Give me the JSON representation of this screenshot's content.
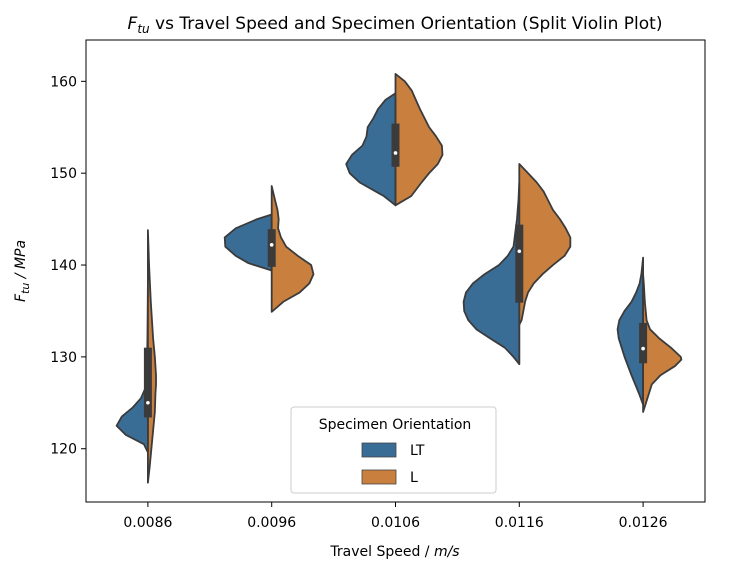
{
  "chart_data": {
    "type": "violin",
    "title": {
      "pre": "F",
      "sub": "tu",
      "post": " vs Travel Speed and Specimen Orientation (Split Violin Plot)"
    },
    "xlabel": {
      "pre": "Travel Speed / ",
      "italic": "m/s"
    },
    "ylabel": {
      "pre": "F",
      "sub": "tu",
      "post": " / MPa"
    },
    "categories": [
      "0.0086",
      "0.0096",
      "0.0106",
      "0.0116",
      "0.0126"
    ],
    "yticks": [
      120,
      130,
      140,
      150,
      160
    ],
    "ylim": [
      114.2,
      164.5
    ],
    "legend": {
      "title": "Specimen Orientation",
      "placement": "lower-center",
      "entries": [
        {
          "label": "LT",
          "color": "#3a6d96"
        },
        {
          "label": "L",
          "color": "#c9803e"
        }
      ]
    },
    "series": [
      {
        "name": "LT",
        "color": "#3a6d96",
        "side": "left",
        "shapes": [
          [
            [
              119.6,
              0.0
            ],
            [
              120.5,
              0.07
            ],
            [
              121.5,
              0.38
            ],
            [
              122.5,
              0.54
            ],
            [
              123.5,
              0.45
            ],
            [
              124.5,
              0.26
            ],
            [
              125.5,
              0.12
            ],
            [
              126.5,
              0.05
            ],
            [
              128,
              0.02
            ],
            [
              132,
              0.008
            ],
            [
              138,
              0.0
            ]
          ],
          [
            [
              139.4,
              0.0
            ],
            [
              140.2,
              0.4
            ],
            [
              141,
              0.62
            ],
            [
              142,
              0.8
            ],
            [
              143,
              0.81
            ],
            [
              144,
              0.62
            ],
            [
              145,
              0.25
            ],
            [
              145.5,
              0.0
            ]
          ],
          [
            [
              146.5,
              0.0
            ],
            [
              147.5,
              0.2
            ],
            [
              149,
              0.62
            ],
            [
              150,
              0.79
            ],
            [
              151,
              0.85
            ],
            [
              152,
              0.75
            ],
            [
              153,
              0.57
            ],
            [
              154,
              0.5
            ],
            [
              155,
              0.48
            ],
            [
              156,
              0.38
            ],
            [
              157,
              0.3
            ],
            [
              158,
              0.17
            ],
            [
              158.7,
              0.0
            ]
          ],
          [
            [
              129.2,
              0.0
            ],
            [
              130,
              0.1
            ],
            [
              131,
              0.25
            ],
            [
              132,
              0.5
            ],
            [
              133,
              0.74
            ],
            [
              134,
              0.88
            ],
            [
              135,
              0.95
            ],
            [
              136,
              0.96
            ],
            [
              137,
              0.92
            ],
            [
              138,
              0.8
            ],
            [
              139,
              0.6
            ],
            [
              140,
              0.35
            ],
            [
              141,
              0.2
            ],
            [
              142,
              0.1
            ],
            [
              145,
              0.04
            ],
            [
              147,
              0.015
            ],
            [
              149,
              0.0
            ]
          ],
          [
            [
              124.8,
              0.0
            ],
            [
              126,
              0.07
            ],
            [
              128,
              0.2
            ],
            [
              130,
              0.32
            ],
            [
              132,
              0.42
            ],
            [
              133,
              0.44
            ],
            [
              134,
              0.41
            ],
            [
              135,
              0.32
            ],
            [
              136,
              0.2
            ],
            [
              137,
              0.12
            ],
            [
              138,
              0.06
            ],
            [
              139,
              0.03
            ],
            [
              140.8,
              0.0
            ]
          ]
        ],
        "box": [
          {
            "q1": 123.4,
            "q3": 131.0,
            "median": 125.0,
            "wlo": 119.6,
            "whi": 131.0
          },
          {
            "q1": 139.8,
            "q3": 143.9,
            "median": 142.2,
            "wlo": 139.4,
            "whi": 145.5
          },
          {
            "q1": 150.7,
            "q3": 155.4,
            "median": 152.2,
            "wlo": 146.5,
            "whi": 158.0
          },
          {
            "q1": 135.9,
            "q3": 144.4,
            "median": 141.5,
            "wlo": 129.2,
            "whi": 149.0
          },
          {
            "q1": 129.3,
            "q3": 133.7,
            "median": 130.9,
            "wlo": 124.8,
            "whi": 137.0
          }
        ]
      },
      {
        "name": "L",
        "color": "#c9803e",
        "side": "right",
        "shapes": [
          [
            [
              116.3,
              0.0
            ],
            [
              118,
              0.03
            ],
            [
              120,
              0.06
            ],
            [
              122,
              0.09
            ],
            [
              124,
              0.12
            ],
            [
              126,
              0.13
            ],
            [
              127,
              0.14
            ],
            [
              128,
              0.14
            ],
            [
              130,
              0.12
            ],
            [
              132,
              0.09
            ],
            [
              134,
              0.07
            ],
            [
              136,
              0.05
            ],
            [
              138,
              0.035
            ],
            [
              140,
              0.02
            ],
            [
              142,
              0.01
            ],
            [
              143.8,
              0.0
            ]
          ],
          [
            [
              134.9,
              0.0
            ],
            [
              136,
              0.2
            ],
            [
              137,
              0.48
            ],
            [
              138,
              0.65
            ],
            [
              139,
              0.72
            ],
            [
              140,
              0.68
            ],
            [
              141,
              0.45
            ],
            [
              142,
              0.25
            ],
            [
              143,
              0.16
            ],
            [
              144,
              0.11
            ],
            [
              145,
              0.12
            ],
            [
              146,
              0.1
            ],
            [
              147,
              0.06
            ],
            [
              148.6,
              0.0
            ]
          ],
          [
            [
              146.5,
              0.0
            ],
            [
              147.5,
              0.27
            ],
            [
              149,
              0.45
            ],
            [
              150,
              0.58
            ],
            [
              151,
              0.73
            ],
            [
              152,
              0.81
            ],
            [
              153,
              0.8
            ],
            [
              154,
              0.7
            ],
            [
              155,
              0.58
            ],
            [
              156,
              0.5
            ],
            [
              157,
              0.42
            ],
            [
              158,
              0.35
            ],
            [
              159,
              0.28
            ],
            [
              160,
              0.16
            ],
            [
              160.8,
              0.0
            ]
          ],
          [
            [
              133.5,
              0.0
            ],
            [
              134,
              0.04
            ],
            [
              135,
              0.07
            ],
            [
              136,
              0.1
            ],
            [
              137,
              0.15
            ],
            [
              138,
              0.25
            ],
            [
              139,
              0.4
            ],
            [
              140,
              0.58
            ],
            [
              141,
              0.78
            ],
            [
              142,
              0.88
            ],
            [
              143,
              0.88
            ],
            [
              144,
              0.8
            ],
            [
              145,
              0.7
            ],
            [
              146,
              0.58
            ],
            [
              147,
              0.5
            ],
            [
              148,
              0.42
            ],
            [
              149,
              0.3
            ],
            [
              150,
              0.15
            ],
            [
              151,
              0.0
            ]
          ],
          [
            [
              124.0,
              0.0
            ],
            [
              125,
              0.05
            ],
            [
              126,
              0.1
            ],
            [
              127,
              0.15
            ],
            [
              128,
              0.3
            ],
            [
              129,
              0.55
            ],
            [
              129.7,
              0.66
            ],
            [
              130,
              0.65
            ],
            [
              131,
              0.48
            ],
            [
              132,
              0.28
            ],
            [
              133,
              0.12
            ],
            [
              134,
              0.06
            ],
            [
              136,
              0.03
            ],
            [
              138,
              0.012
            ],
            [
              139,
              0.0
            ]
          ]
        ]
      }
    ]
  }
}
